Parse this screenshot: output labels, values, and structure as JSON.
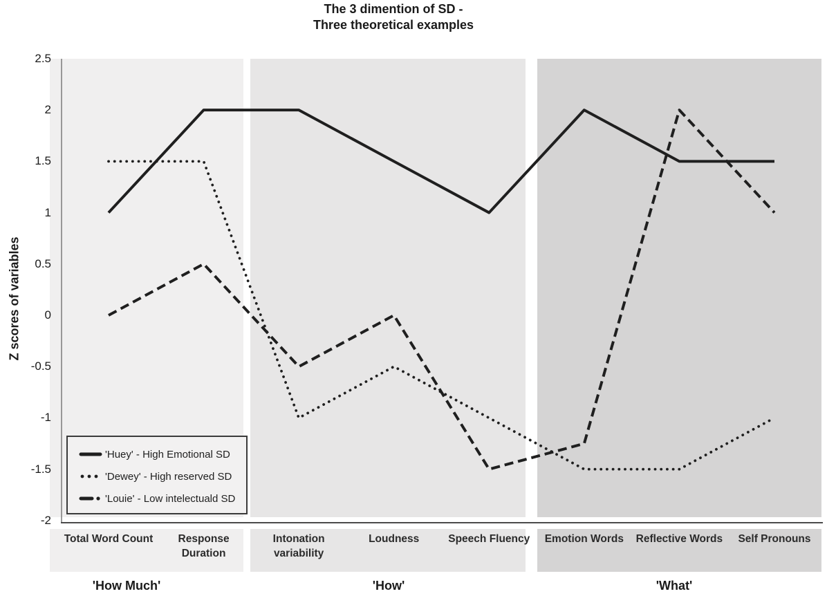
{
  "chart_data": {
    "type": "line",
    "title_lines": [
      "The 3 dimention of SD -",
      "Three theoretical examples"
    ],
    "ylabel": "Z scores of variables",
    "ylim": [
      -2,
      2.5
    ],
    "ytick_labels": [
      "2.5",
      "2",
      "1.5",
      "1",
      "0.5",
      "0",
      "-0.5",
      "-1",
      "-1.5",
      "-2"
    ],
    "grid": false,
    "legend_position": "bottom-left",
    "axis_color": "#4a4a4a",
    "categories": [
      "Total Word Count",
      "Response\nDuration",
      "Intonation\nvariability",
      "Loudness",
      "Speech Fluency",
      "Emotion Words",
      "Reflective Words",
      "Self Pronouns"
    ],
    "series": [
      {
        "name": "huey",
        "legend_label": "'Huey' - High Emotional SD",
        "line_style": "solid",
        "color": "#1f1f1f",
        "values": [
          1,
          2,
          2,
          1.5,
          1,
          2,
          1.5,
          1.5
        ]
      },
      {
        "name": "dewey",
        "legend_label": "'Dewey' - High reserved SD",
        "line_style": "dotted",
        "color": "#1f1f1f",
        "values": [
          1.5,
          1.5,
          -1,
          -0.5,
          -1,
          -1.5,
          -1.5,
          -1
        ]
      },
      {
        "name": "louie",
        "legend_label": "'Louie' - Low intelectuald SD",
        "line_style": "dashed",
        "color": "#1f1f1f",
        "values": [
          0,
          0.5,
          -0.5,
          0,
          -1.5,
          -1.25,
          2,
          1
        ]
      }
    ],
    "groups": [
      {
        "label": "'How Much'",
        "cat_start": 0,
        "cat_end": 1,
        "band_color": "#f0efef"
      },
      {
        "label": "'How'",
        "cat_start": 2,
        "cat_end": 4,
        "band_color": "#e7e6e6"
      },
      {
        "label": "'What'",
        "cat_start": 5,
        "cat_end": 7,
        "band_color": "#d5d4d4"
      }
    ]
  }
}
